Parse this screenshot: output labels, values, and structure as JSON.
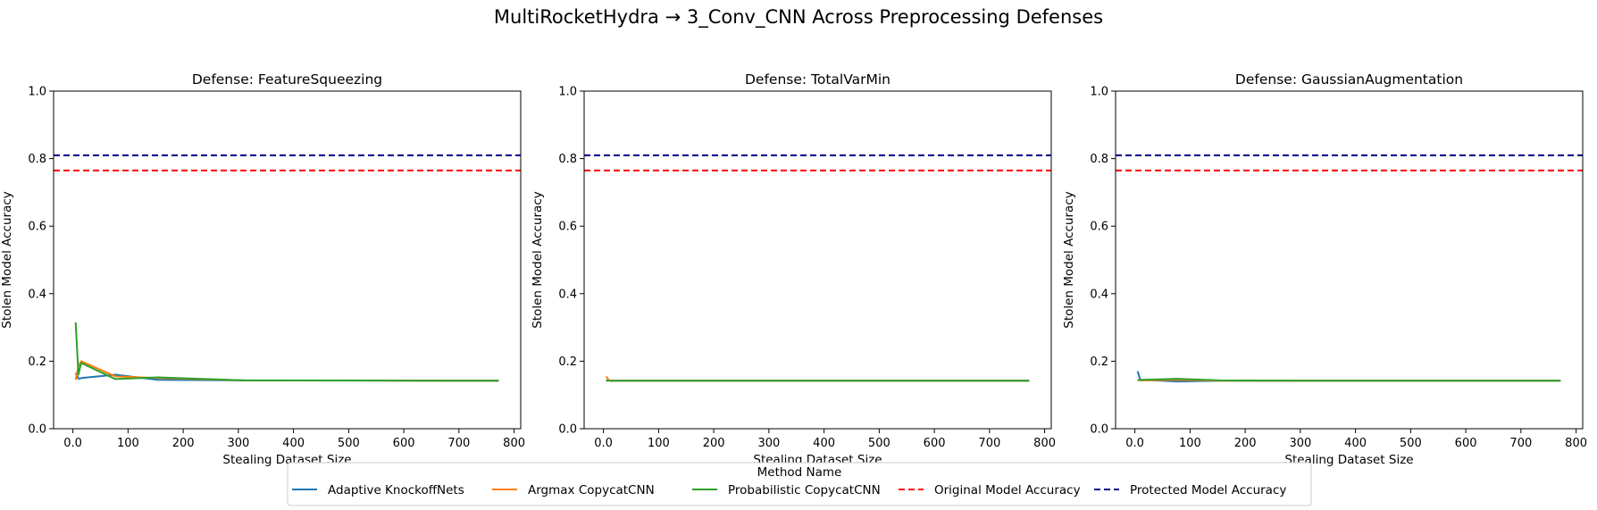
{
  "figure": {
    "title": "MultiRocketHydra → 3_Conv_CNN Across Preprocessing Defenses"
  },
  "legend": {
    "title": "Method Name",
    "placement": "bottom-center",
    "entries": [
      {
        "label": "Adaptive KnockoffNets",
        "color": "#1f77b4",
        "style": "solid"
      },
      {
        "label": "Argmax CopycatCNN",
        "color": "#ff7f0e",
        "style": "solid"
      },
      {
        "label": "Probabilistic CopycatCNN",
        "color": "#2ca02c",
        "style": "solid"
      },
      {
        "label": "Original Model Accuracy",
        "color": "#ff0000",
        "style": "dashed"
      },
      {
        "label": "Protected Model Accuracy",
        "color": "#00008b",
        "style": "dashed"
      }
    ]
  },
  "chart_data": [
    {
      "type": "line",
      "title": "Defense: FeatureSqueezing",
      "xlabel": "Stealing Dataset Size",
      "ylabel": "Stolen Model Accuracy",
      "xlim": [
        -35,
        812
      ],
      "ylim": [
        0,
        1.0
      ],
      "xticks": [
        0,
        100,
        200,
        300,
        400,
        500,
        600,
        700,
        800
      ],
      "yticks": [
        0.0,
        0.2,
        0.4,
        0.6,
        0.8,
        1.0
      ],
      "grid": false,
      "hlines": [
        {
          "name": "Original Model Accuracy",
          "y": 0.765,
          "color": "#ff0000"
        },
        {
          "name": "Protected Model Accuracy",
          "y": 0.81,
          "color": "#00008b"
        }
      ],
      "series": [
        {
          "name": "Adaptive KnockoffNets",
          "color": "#1f77b4",
          "x": [
            5,
            10,
            15,
            77,
            154,
            309,
            772
          ],
          "y": [
            0.165,
            0.148,
            0.15,
            0.16,
            0.145,
            0.143,
            0.142
          ]
        },
        {
          "name": "Argmax CopycatCNN",
          "color": "#ff7f0e",
          "x": [
            5,
            10,
            15,
            77,
            154,
            309,
            772
          ],
          "y": [
            0.145,
            0.185,
            0.2,
            0.155,
            0.15,
            0.143,
            0.142
          ]
        },
        {
          "name": "Probabilistic CopycatCNN",
          "color": "#2ca02c",
          "x": [
            5,
            10,
            15,
            77,
            154,
            309,
            772
          ],
          "y": [
            0.315,
            0.16,
            0.195,
            0.147,
            0.152,
            0.143,
            0.142
          ]
        }
      ]
    },
    {
      "type": "line",
      "title": "Defense: TotalVarMin",
      "xlabel": "Stealing Dataset Size",
      "ylabel": "Stolen Model Accuracy",
      "xlim": [
        -35,
        812
      ],
      "ylim": [
        0,
        1.0
      ],
      "xticks": [
        0,
        100,
        200,
        300,
        400,
        500,
        600,
        700,
        800
      ],
      "yticks": [
        0.0,
        0.2,
        0.4,
        0.6,
        0.8,
        1.0
      ],
      "grid": false,
      "hlines": [
        {
          "name": "Original Model Accuracy",
          "y": 0.765,
          "color": "#ff0000"
        },
        {
          "name": "Protected Model Accuracy",
          "y": 0.81,
          "color": "#00008b"
        }
      ],
      "series": [
        {
          "name": "Adaptive KnockoffNets",
          "color": "#1f77b4",
          "x": [
            5,
            10,
            15,
            77,
            154,
            309,
            772
          ],
          "y": [
            0.143,
            0.143,
            0.142,
            0.142,
            0.142,
            0.142,
            0.142
          ]
        },
        {
          "name": "Argmax CopycatCNN",
          "color": "#ff7f0e",
          "x": [
            5,
            10,
            15,
            77,
            154,
            309,
            772
          ],
          "y": [
            0.155,
            0.143,
            0.142,
            0.142,
            0.142,
            0.142,
            0.142
          ]
        },
        {
          "name": "Probabilistic CopycatCNN",
          "color": "#2ca02c",
          "x": [
            5,
            10,
            15,
            77,
            154,
            309,
            772
          ],
          "y": [
            0.142,
            0.142,
            0.142,
            0.142,
            0.142,
            0.142,
            0.142
          ]
        }
      ]
    },
    {
      "type": "line",
      "title": "Defense: GaussianAugmentation",
      "xlabel": "Stealing Dataset Size",
      "ylabel": "Stolen Model Accuracy",
      "xlim": [
        -35,
        812
      ],
      "ylim": [
        0,
        1.0
      ],
      "xticks": [
        0,
        100,
        200,
        300,
        400,
        500,
        600,
        700,
        800
      ],
      "yticks": [
        0.0,
        0.2,
        0.4,
        0.6,
        0.8,
        1.0
      ],
      "grid": false,
      "hlines": [
        {
          "name": "Original Model Accuracy",
          "y": 0.765,
          "color": "#ff0000"
        },
        {
          "name": "Protected Model Accuracy",
          "y": 0.81,
          "color": "#00008b"
        }
      ],
      "series": [
        {
          "name": "Adaptive KnockoffNets",
          "color": "#1f77b4",
          "x": [
            5,
            10,
            15,
            77,
            154,
            309,
            772
          ],
          "y": [
            0.17,
            0.143,
            0.145,
            0.14,
            0.142,
            0.142,
            0.142
          ]
        },
        {
          "name": "Argmax CopycatCNN",
          "color": "#ff7f0e",
          "x": [
            5,
            10,
            15,
            77,
            154,
            309,
            772
          ],
          "y": [
            0.145,
            0.143,
            0.143,
            0.145,
            0.142,
            0.142,
            0.142
          ]
        },
        {
          "name": "Probabilistic CopycatCNN",
          "color": "#2ca02c",
          "x": [
            5,
            10,
            15,
            77,
            154,
            309,
            772
          ],
          "y": [
            0.143,
            0.145,
            0.145,
            0.148,
            0.143,
            0.142,
            0.142
          ]
        }
      ]
    }
  ]
}
